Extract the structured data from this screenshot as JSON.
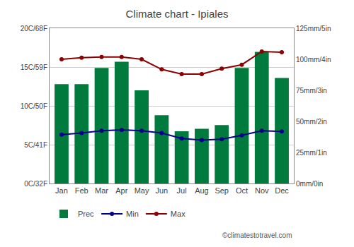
{
  "chart_data": {
    "type": "bar",
    "title": "Climate chart - Ipiales",
    "categories": [
      "Jan",
      "Feb",
      "Mar",
      "Apr",
      "May",
      "Jun",
      "Jul",
      "Aug",
      "Sep",
      "Oct",
      "Nov",
      "Dec"
    ],
    "series": [
      {
        "name": "Prec",
        "type": "bar",
        "axis": "y2",
        "color": "#007A3D",
        "values": [
          80,
          80,
          93,
          98,
          75,
          55,
          42,
          44,
          47,
          93,
          106,
          85
        ]
      },
      {
        "name": "Min",
        "type": "line",
        "color": "#00008B",
        "marker": "circle",
        "line_style": "solid",
        "values": [
          6.3,
          6.5,
          6.8,
          6.9,
          6.8,
          6.5,
          5.8,
          5.6,
          5.7,
          6.2,
          6.8,
          6.7
        ]
      },
      {
        "name": "Max",
        "type": "line",
        "color": "#8B0000",
        "marker": "circle",
        "line_style": "solid",
        "values": [
          16.0,
          16.2,
          16.3,
          16.3,
          16.0,
          14.7,
          14.1,
          14.1,
          14.8,
          15.3,
          17.0,
          16.9
        ]
      }
    ],
    "ylim": [
      0,
      20
    ],
    "yticks": [
      {
        "value": 0,
        "label": "0C/32F"
      },
      {
        "value": 5,
        "label": "5C/41F"
      },
      {
        "value": 10,
        "label": "10C/50F"
      },
      {
        "value": 15,
        "label": "15C/59F"
      },
      {
        "value": 20,
        "label": "20C/68F"
      }
    ],
    "y2lim": [
      0,
      125
    ],
    "y2ticks": [
      {
        "value": 0,
        "label": "0mm/0in"
      },
      {
        "value": 25,
        "label": "25mm/1in"
      },
      {
        "value": 50,
        "label": "50mm/2in"
      },
      {
        "value": 75,
        "label": "75mm/3in"
      },
      {
        "value": 100,
        "label": "100mm/4in"
      },
      {
        "value": 125,
        "label": "125mm/5in"
      }
    ],
    "grid": true,
    "legend": "bottom",
    "annotations": [
      "©climatestotravel.com"
    ]
  }
}
